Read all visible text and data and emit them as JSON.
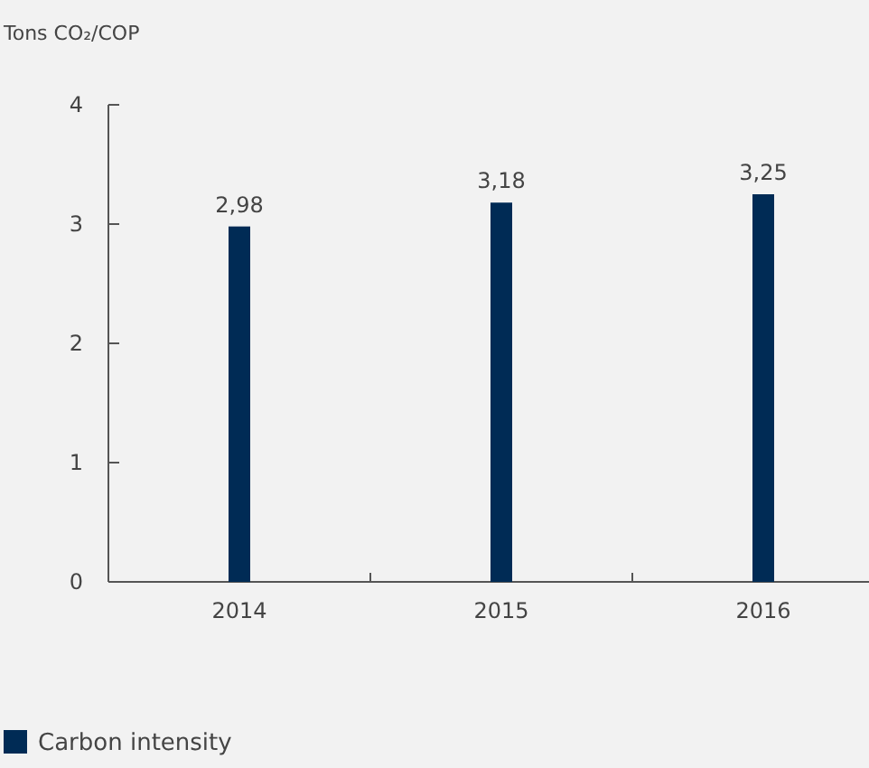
{
  "chart_data": {
    "type": "bar",
    "ylabel": "Tons CO₂/COP",
    "categories": [
      "2014",
      "2015",
      "2016"
    ],
    "series": [
      {
        "name": "Carbon intensity",
        "color": "#002b55",
        "values": [
          2.98,
          3.18,
          3.25
        ],
        "value_labels": [
          "2,98",
          "3,18",
          "3,25"
        ]
      }
    ],
    "ylim": [
      0,
      4
    ],
    "yticks": [
      0,
      1,
      2,
      3,
      4
    ],
    "grid": false,
    "legend": "bottom left"
  }
}
